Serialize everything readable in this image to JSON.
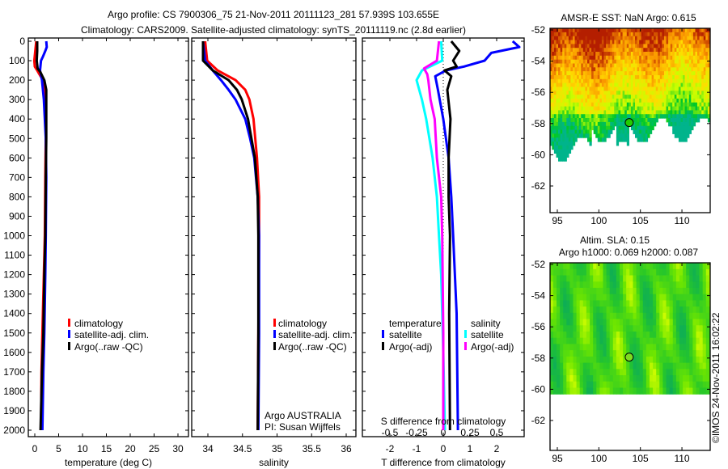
{
  "header": {
    "line1": "Argo profile: CS 7900306_75 21-Nov-2011 20111123_281 57.939S 103.655E",
    "line2": "Climatology: CARS2009. Satellite-adjusted climatology: synTS_20111119.nc (2.8d earlier)"
  },
  "colors": {
    "climatology": "#ff0000",
    "satellite": "#0000ff",
    "argo": "#000000",
    "sal_satellite": "#00ffff",
    "sal_argo": "#ff00ff"
  },
  "chart_data": [
    {
      "type": "line",
      "id": "temperature",
      "xlabel": "temperature (deg C)",
      "xlim": [
        -1.4,
        32.2
      ],
      "ylim": [
        2000,
        0
      ],
      "xticks": [
        0,
        5,
        10,
        15,
        20,
        25,
        30
      ],
      "yticks": [
        0,
        100,
        200,
        300,
        400,
        500,
        600,
        700,
        800,
        900,
        1000,
        1100,
        1200,
        1300,
        1400,
        1500,
        1600,
        1700,
        1800,
        1900,
        2000
      ],
      "legend": {
        "placement": "lower-center",
        "items": [
          {
            "label": "climatology",
            "color": "#ff0000"
          },
          {
            "label": "satellite-adj. clim.",
            "color": "#0000ff"
          },
          {
            "label": "Argo(..raw -QC)",
            "color": "#000000"
          }
        ]
      },
      "series": [
        {
          "name": "climatology",
          "color": "#ff0000",
          "pressure": [
            0,
            50,
            100,
            130,
            150,
            180,
            200,
            250,
            300,
            500,
            700,
            1000,
            1200,
            1500,
            1700,
            2000
          ],
          "values": [
            0.3,
            0.1,
            -0.1,
            0.0,
            0.5,
            1.2,
            1.8,
            2.1,
            2.2,
            2.3,
            2.2,
            2.1,
            1.9,
            1.6,
            1.4,
            1.3
          ]
        },
        {
          "name": "satellite-adj. clim.",
          "color": "#0000ff",
          "pressure": [
            0,
            30,
            50,
            80,
            100,
            150,
            200,
            300,
            500,
            700,
            1000,
            1200,
            1500,
            1700,
            2000
          ],
          "values": [
            2.4,
            2.5,
            2.2,
            1.7,
            1.3,
            1.1,
            1.5,
            1.9,
            2.3,
            2.4,
            2.3,
            2.2,
            2.0,
            1.8,
            1.6
          ]
        },
        {
          "name": "Argo(..raw -QC)",
          "color": "#000000",
          "pressure": [
            0,
            50,
            100,
            140,
            160,
            200,
            250,
            500,
            700,
            1000,
            1200,
            1500,
            1700,
            2000
          ],
          "values": [
            0.5,
            0.5,
            0.4,
            0.6,
            1.2,
            2.0,
            2.4,
            2.4,
            2.3,
            2.2,
            2.0,
            1.8,
            1.5,
            1.2
          ]
        }
      ]
    },
    {
      "type": "line",
      "id": "salinity",
      "xlabel": "salinity",
      "xlim": [
        33.79,
        36.15
      ],
      "ylim": [
        2000,
        0
      ],
      "xticks": [
        34,
        34.5,
        35,
        35.5,
        36
      ],
      "legend": {
        "placement": "lower-right",
        "items": [
          {
            "label": "climatology",
            "color": "#ff0000"
          },
          {
            "label": "satellite-adj. clim.",
            "color": "#0000ff"
          },
          {
            "label": "Argo(..raw -QC)",
            "color": "#000000"
          }
        ]
      },
      "annotation": [
        "Argo AUSTRALIA",
        "PI: Susan Wijffels"
      ],
      "series": [
        {
          "name": "climatology",
          "color": "#ff0000",
          "pressure": [
            0,
            100,
            150,
            200,
            250,
            300,
            400,
            600,
            800,
            1000,
            1500,
            2000
          ],
          "values": [
            33.96,
            33.99,
            34.14,
            34.4,
            34.54,
            34.6,
            34.66,
            34.71,
            34.74,
            34.74,
            34.73,
            34.72
          ]
        },
        {
          "name": "satellite-adj. clim.",
          "color": "#0000ff",
          "pressure": [
            0,
            100,
            150,
            200,
            250,
            300,
            400,
            500,
            600,
            800,
            1000,
            1500,
            2000
          ],
          "values": [
            33.93,
            33.96,
            34.07,
            34.19,
            34.3,
            34.4,
            34.54,
            34.61,
            34.67,
            34.72,
            34.74,
            34.74,
            34.73
          ]
        },
        {
          "name": "Argo(..raw -QC)",
          "color": "#000000",
          "pressure": [
            0,
            100,
            150,
            200,
            250,
            300,
            400,
            600,
            800,
            1000,
            1500,
            2000
          ],
          "values": [
            33.93,
            33.93,
            34.07,
            34.3,
            34.42,
            34.49,
            34.58,
            34.68,
            34.72,
            34.73,
            34.73,
            34.72
          ]
        }
      ]
    },
    {
      "type": "line",
      "id": "difference",
      "xlabel": "T difference from climatology",
      "xlabel2": "S difference from climatology",
      "xlim": [
        -3,
        3.05
      ],
      "xticks": [
        -2,
        -1,
        0,
        1,
        2
      ],
      "xticks2": [
        "-0.5",
        "-0.25",
        "0",
        "0.25",
        "0.5"
      ],
      "xticks2_values": [
        -0.5,
        -0.25,
        0,
        0.25,
        0.5
      ],
      "ylim": [
        2000,
        0
      ],
      "legend": {
        "placement": "lower-center",
        "temp_heading": "temperature",
        "sal_heading": "salinity",
        "items": [
          {
            "label": "satellite",
            "color": "#0000ff",
            "group": "temperature"
          },
          {
            "label": "Argo(-adj)",
            "color": "#000000",
            "group": "temperature"
          },
          {
            "label": "satellite",
            "color": "#00ffff",
            "group": "salinity"
          },
          {
            "label": "Argo(-adj)",
            "color": "#ff00ff",
            "group": "salinity"
          }
        ]
      },
      "series": [
        {
          "name": "T satellite",
          "unit": "T",
          "color": "#0000ff",
          "pressure": [
            0,
            30,
            60,
            100,
            130,
            150,
            180,
            250,
            400,
            600,
            800,
            1000,
            1400,
            2000
          ],
          "values": [
            2.6,
            2.85,
            1.8,
            1.55,
            0.78,
            0.1,
            -0.3,
            -0.2,
            0.0,
            0.2,
            0.3,
            0.37,
            0.5,
            0.55
          ]
        },
        {
          "name": "T Argo(-adj)",
          "unit": "T",
          "color": "#000000",
          "pressure": [
            0,
            50,
            100,
            130,
            150,
            180,
            250,
            400,
            600,
            800,
            1000,
            1400,
            2000
          ],
          "values": [
            0.3,
            0.6,
            0.37,
            0.5,
            0.05,
            0.3,
            0.15,
            0.27,
            0.2,
            0.2,
            0.25,
            0.22,
            0.25
          ]
        },
        {
          "name": "S satellite",
          "unit": "S",
          "color": "#00ffff",
          "pressure": [
            0,
            100,
            150,
            200,
            300,
            400,
            600,
            800,
            1000,
            1200,
            1600,
            2000
          ],
          "values": [
            -0.02,
            -0.01,
            -0.2,
            -0.25,
            -0.2,
            -0.16,
            -0.1,
            -0.06,
            -0.04,
            -0.02,
            0.0,
            0.015
          ]
        },
        {
          "name": "S Argo(-adj)",
          "unit": "S",
          "color": "#ff00ff",
          "pressure": [
            0,
            100,
            140,
            170,
            200,
            300,
            400,
            600,
            800,
            1000,
            1500,
            2000
          ],
          "values": [
            -0.04,
            -0.06,
            -0.18,
            -0.15,
            -0.14,
            -0.12,
            -0.08,
            -0.06,
            -0.02,
            -0.01,
            0.0,
            0.0
          ]
        }
      ]
    }
  ],
  "maps": [
    {
      "title": "AMSR-E SST: NaN Argo: 0.615",
      "lon_ticks": [
        "95",
        "100",
        "105",
        "110"
      ],
      "lat_ticks": [
        "-52",
        "-54",
        "-56",
        "-58",
        "-60",
        "-62"
      ],
      "argo_lon": 103.655,
      "argo_lat": -57.939
    },
    {
      "title1": "Altim. SLA: 0.15",
      "title2": "Argo h1000: 0.069 h2000: 0.087",
      "lon_ticks": [
        "95",
        "100",
        "105",
        "110"
      ],
      "lat_ticks": [
        "-52",
        "-54",
        "-56",
        "-58",
        "-60",
        "-62"
      ],
      "argo_lon": 103.655,
      "argo_lat": -57.939
    }
  ],
  "watermark": "©IMOS 24-Nov-2011 16:02:22"
}
